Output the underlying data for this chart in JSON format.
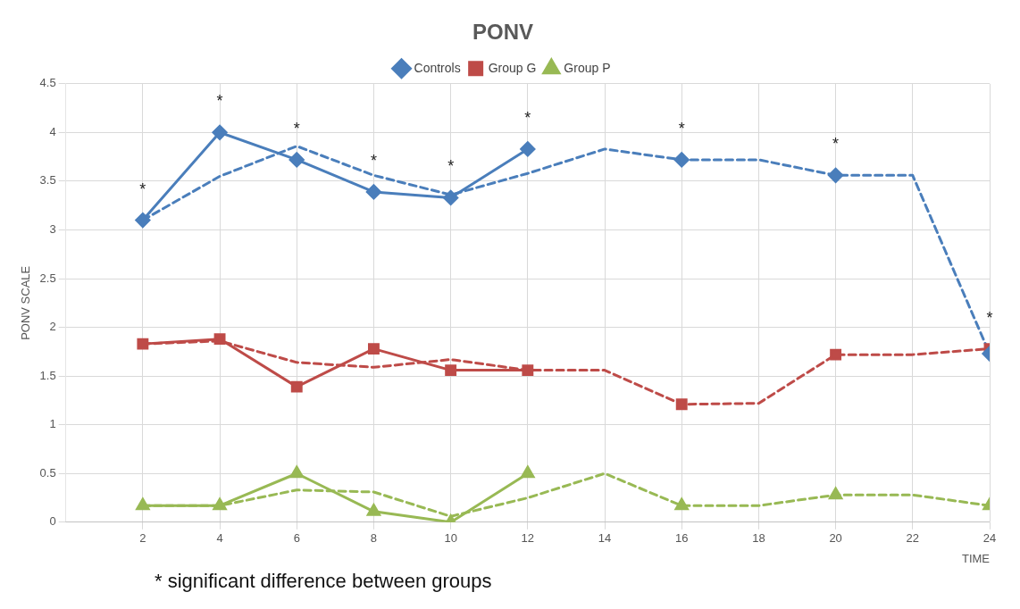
{
  "chart_data": {
    "type": "line",
    "title": "PONV",
    "xlabel": "TIME",
    "ylabel": "PONV SCALE",
    "x": [
      2,
      4,
      6,
      8,
      10,
      12,
      14,
      16,
      18,
      20,
      22,
      24
    ],
    "xlim": [
      0,
      24
    ],
    "xticks": [
      2,
      4,
      6,
      8,
      10,
      12,
      14,
      16,
      18,
      20,
      22,
      24
    ],
    "ylim": [
      0,
      4.5
    ],
    "yticks": [
      0,
      0.5,
      1,
      1.5,
      2,
      2.5,
      3,
      3.5,
      4,
      4.5
    ],
    "grid": true,
    "legend": "top",
    "series": [
      {
        "name": "Controls",
        "color": "#4a7ebb",
        "marker": "diamond",
        "line_style": "solid",
        "values": [
          3.1,
          4.0,
          3.72,
          3.39,
          3.33,
          3.83,
          null,
          3.72,
          null,
          3.56,
          null,
          1.73
        ]
      },
      {
        "name": "Group G",
        "color": "#be4b48",
        "marker": "square",
        "line_style": "solid",
        "values": [
          1.83,
          1.88,
          1.39,
          1.78,
          1.56,
          1.56,
          null,
          1.21,
          null,
          1.72,
          null,
          1.78
        ]
      },
      {
        "name": "Group P",
        "color": "#98b954",
        "marker": "triangle",
        "line_style": "solid",
        "values": [
          0.17,
          0.17,
          0.5,
          0.11,
          0.0,
          0.5,
          null,
          0.17,
          null,
          0.28,
          null,
          0.17
        ]
      },
      {
        "color": "#4a7ebb",
        "marker": "none",
        "line_style": "dashed",
        "values": [
          3.1,
          3.55,
          3.86,
          3.56,
          3.36,
          3.58,
          3.83,
          3.72,
          3.72,
          3.56,
          3.56,
          1.73
        ]
      },
      {
        "color": "#be4b48",
        "marker": "none",
        "line_style": "dashed",
        "values": [
          1.83,
          1.86,
          1.64,
          1.59,
          1.67,
          1.56,
          1.56,
          1.21,
          1.22,
          1.72,
          1.72,
          1.78
        ]
      },
      {
        "color": "#98b954",
        "marker": "none",
        "line_style": "dashed",
        "values": [
          0.17,
          0.17,
          0.33,
          0.31,
          0.06,
          0.25,
          0.5,
          0.17,
          0.17,
          0.28,
          0.28,
          0.17
        ]
      }
    ],
    "annotations": [
      {
        "text": "*",
        "x": 2,
        "y": 3.1
      },
      {
        "text": "*",
        "x": 4,
        "y": 4.0
      },
      {
        "text": "*",
        "x": 6,
        "y": 3.72
      },
      {
        "text": "*",
        "x": 8,
        "y": 3.39
      },
      {
        "text": "*",
        "x": 10,
        "y": 3.33
      },
      {
        "text": "*",
        "x": 12,
        "y": 3.83
      },
      {
        "text": "*",
        "x": 16,
        "y": 3.72
      },
      {
        "text": "*",
        "x": 20,
        "y": 3.56
      },
      {
        "text": "*",
        "x": 24,
        "y": 1.78
      },
      "* significant difference between groups"
    ]
  }
}
